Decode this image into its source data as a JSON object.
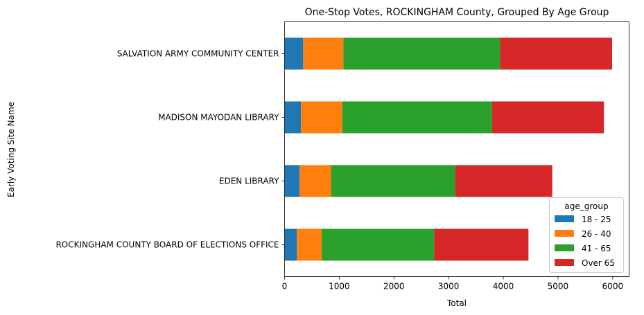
{
  "chart_data": {
    "type": "bar",
    "orientation": "horizontal",
    "stacked": true,
    "title": "One-Stop Votes, ROCKINGHAM County, Grouped By Age Group",
    "xlabel": "Total",
    "ylabel": "Early Voting Site Name",
    "xlim": [
      0,
      6300
    ],
    "x_ticks": [
      "0",
      "1000",
      "2000",
      "3000",
      "4000",
      "5000",
      "6000"
    ],
    "x_tick_values": [
      0,
      1000,
      2000,
      3000,
      4000,
      5000,
      6000
    ],
    "categories": [
      "ROCKINGHAM COUNTY BOARD OF ELECTIONS OFFICE",
      "EDEN LIBRARY",
      "MADISON MAYODAN LIBRARY",
      "SALVATION ARMY COMMUNITY CENTER"
    ],
    "series": [
      {
        "name": "18 - 25",
        "color": "#1f77b4",
        "values": [
          225,
          275,
          300,
          340
        ]
      },
      {
        "name": "26 - 40",
        "color": "#ff7f0e",
        "values": [
          455,
          575,
          755,
          735
        ]
      },
      {
        "name": "41 - 65",
        "color": "#2ca02c",
        "values": [
          2055,
          2270,
          2740,
          2865
        ]
      },
      {
        "name": "Over 65",
        "color": "#d62728",
        "values": [
          1725,
          1775,
          2045,
          2050
        ]
      }
    ],
    "legend": {
      "title": "age_group",
      "position": "lower-right"
    },
    "grid": false
  }
}
